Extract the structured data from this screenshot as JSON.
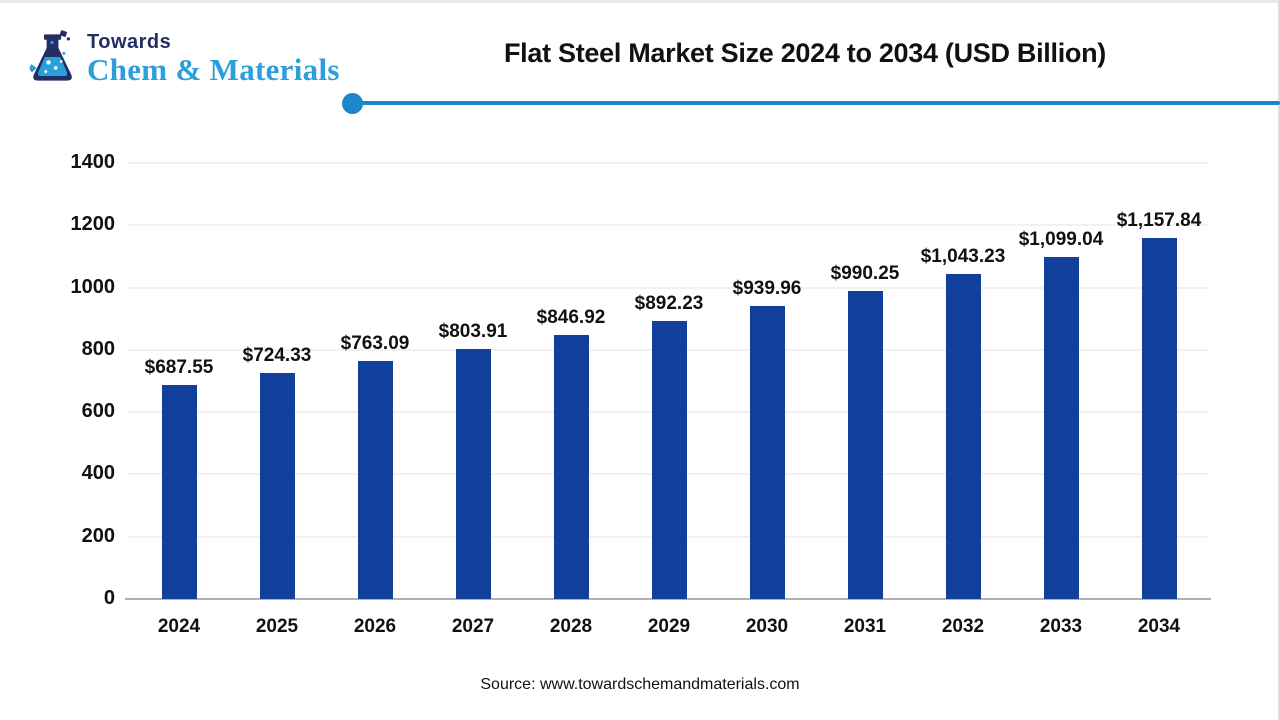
{
  "header": {
    "logo": {
      "line1": "Towards",
      "line2": "Chem & Materials",
      "icon": "flask-icon",
      "navy_color": "#232e64",
      "light_blue_color": "#2b9fd9"
    },
    "title": "Flat Steel Market Size 2024 to 2034 (USD Billion)",
    "divider_color": "#1a87ca"
  },
  "chart_data": {
    "type": "bar",
    "title": "Flat Steel Market Size 2024 to 2034 (USD Billion)",
    "categories": [
      "2024",
      "2025",
      "2026",
      "2027",
      "2028",
      "2029",
      "2030",
      "2031",
      "2032",
      "2033",
      "2034"
    ],
    "values": [
      687.55,
      724.33,
      763.09,
      803.91,
      846.92,
      892.23,
      939.96,
      990.25,
      1043.23,
      1099.04,
      1157.84
    ],
    "value_labels": [
      "$687.55",
      "$724.33",
      "$763.09",
      "$803.91",
      "$846.92",
      "$892.23",
      "$939.96",
      "$990.25",
      "$1,043.23",
      "$1,099.04",
      "$1,157.84"
    ],
    "xlabel": "",
    "ylabel": "",
    "ylim": [
      0,
      1400
    ],
    "yticks": [
      0,
      200,
      400,
      600,
      800,
      1000,
      1200,
      1400
    ],
    "grid": true,
    "legend": false,
    "bar_color": "#10409b",
    "gridline_color": "#f1f1f1",
    "axis_line_color": "#b0b0b0"
  },
  "footer": {
    "source": "Source: www.towardschemandmaterials.com"
  }
}
